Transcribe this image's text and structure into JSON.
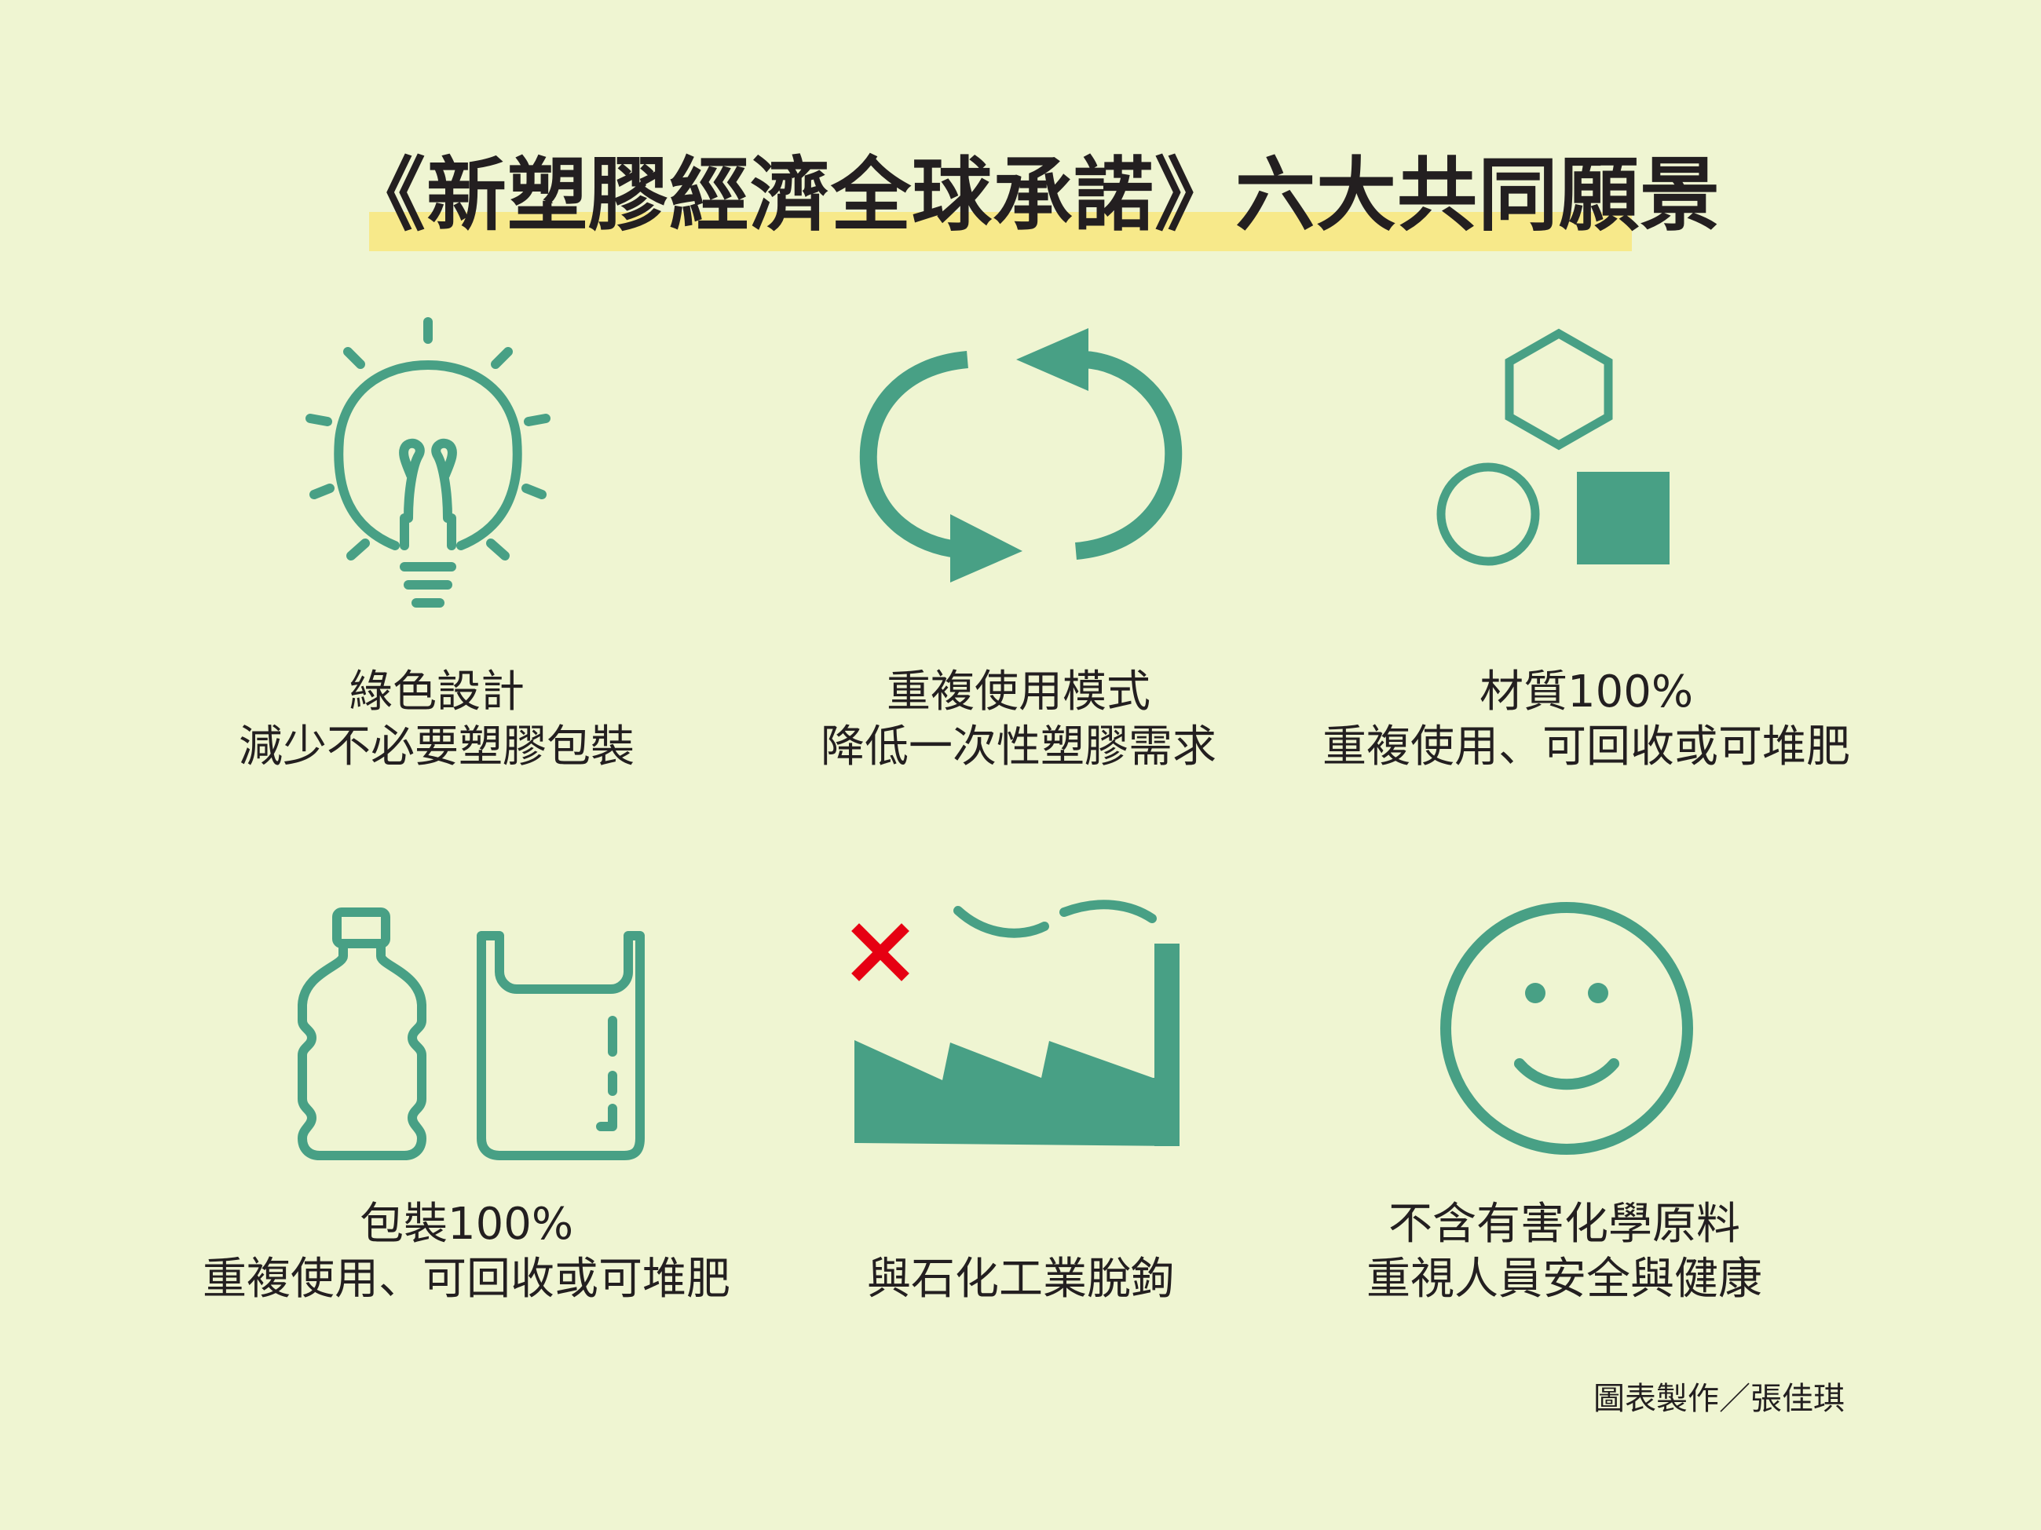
{
  "title": "《新塑膠經濟全球承諾》六大共同願景",
  "colors": {
    "background": "#eff5d2",
    "icon_green": "#48a085",
    "title_highlight": "#f7e98a",
    "red_cross": "#e60012"
  },
  "items": [
    {
      "icon": "lightbulb-icon",
      "line1": "綠色設計",
      "line2": "減少不必要塑膠包裝"
    },
    {
      "icon": "recycle-arrows-icon",
      "line1": "重複使用模式",
      "line2": "降低一次性塑膠需求"
    },
    {
      "icon": "shapes-icon",
      "line1": "材質100%",
      "line2": "重複使用、可回收或可堆肥"
    },
    {
      "icon": "bottle-and-bag-icon",
      "line1": "包裝100%",
      "line2": "重複使用、可回收或可堆肥"
    },
    {
      "icon": "factory-crossed-icon",
      "line1": "",
      "line2": "與石化工業脫鉤"
    },
    {
      "icon": "smiley-face-icon",
      "line1": "不含有害化學原料",
      "line2": "重視人員安全與健康"
    }
  ],
  "credit": "圖表製作／張佳琪"
}
